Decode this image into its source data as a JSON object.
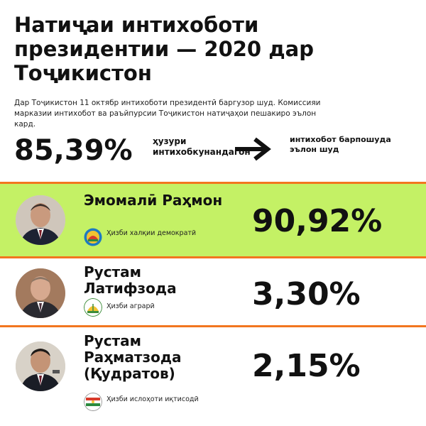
{
  "title": "Натиҷаи интихоботи президентии — 2020 дар Тоҷикистон",
  "intro": "Дар Тоҷикистон 11 октябр интихоботи президентӣ баргузор шуд. Комиссияи марказии интихобот ва раъйпурсии Тоҷикистон натиҷаҳои пешакиро эълон кард.",
  "turnout": {
    "value": "85,39%",
    "label": "ҳузури интихобкунандагон"
  },
  "result_label": "интихобот барпошуда эълон шуд",
  "arrow_icon": "arrow-right-icon",
  "colors": {
    "accent": "#f2761f",
    "winner_bg": "#c4f165"
  },
  "chart_data": {
    "type": "table",
    "unit": "%",
    "turnout_pct": 85.39,
    "columns": [
      "candidate",
      "party",
      "vote_pct"
    ],
    "rows": [
      {
        "candidate": "Эмомалӣ Раҳмон",
        "party": "Ҳизби халқии демократӣ",
        "vote_pct": 90.92,
        "label": "90,92%"
      },
      {
        "candidate": "Рустам Латифзода",
        "party": "Ҳизби аграрӣ",
        "vote_pct": 3.3,
        "label": "3,30%"
      },
      {
        "candidate": "Рустам Раҳматзода (Қудратов)",
        "party": "Ҳизби ислоҳоти иқтисодӣ",
        "vote_pct": 2.15,
        "label": "2,15%"
      }
    ]
  }
}
